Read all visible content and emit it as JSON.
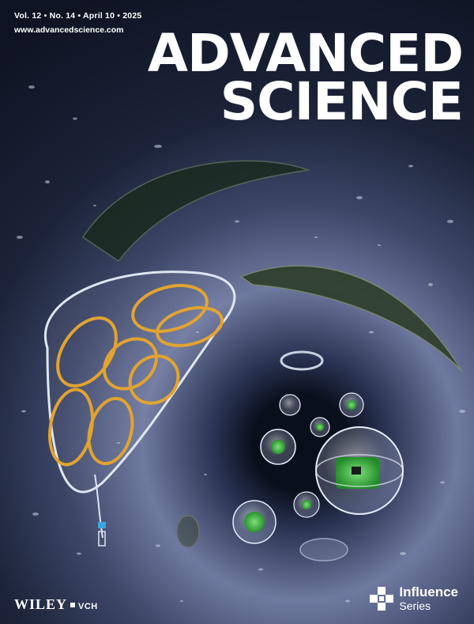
{
  "cover": {
    "issue_line": "Vol. 12 • No. 14 • April 10 • 2025",
    "website": "www.advancedscience.com",
    "masthead_line1": "ADVANCED",
    "masthead_line2": "SCIENCE"
  },
  "footer": {
    "publisher": "WILEY",
    "publisher_sub": "VCH",
    "series_title": "Influence",
    "series_sub": "Series"
  },
  "colors": {
    "coil": "#e2a330",
    "frame": "#dfe6f2",
    "chip": "#3fb23f",
    "background_dark": "#0d1220"
  },
  "icons": {
    "series_logo": "cross-blocks-icon"
  }
}
